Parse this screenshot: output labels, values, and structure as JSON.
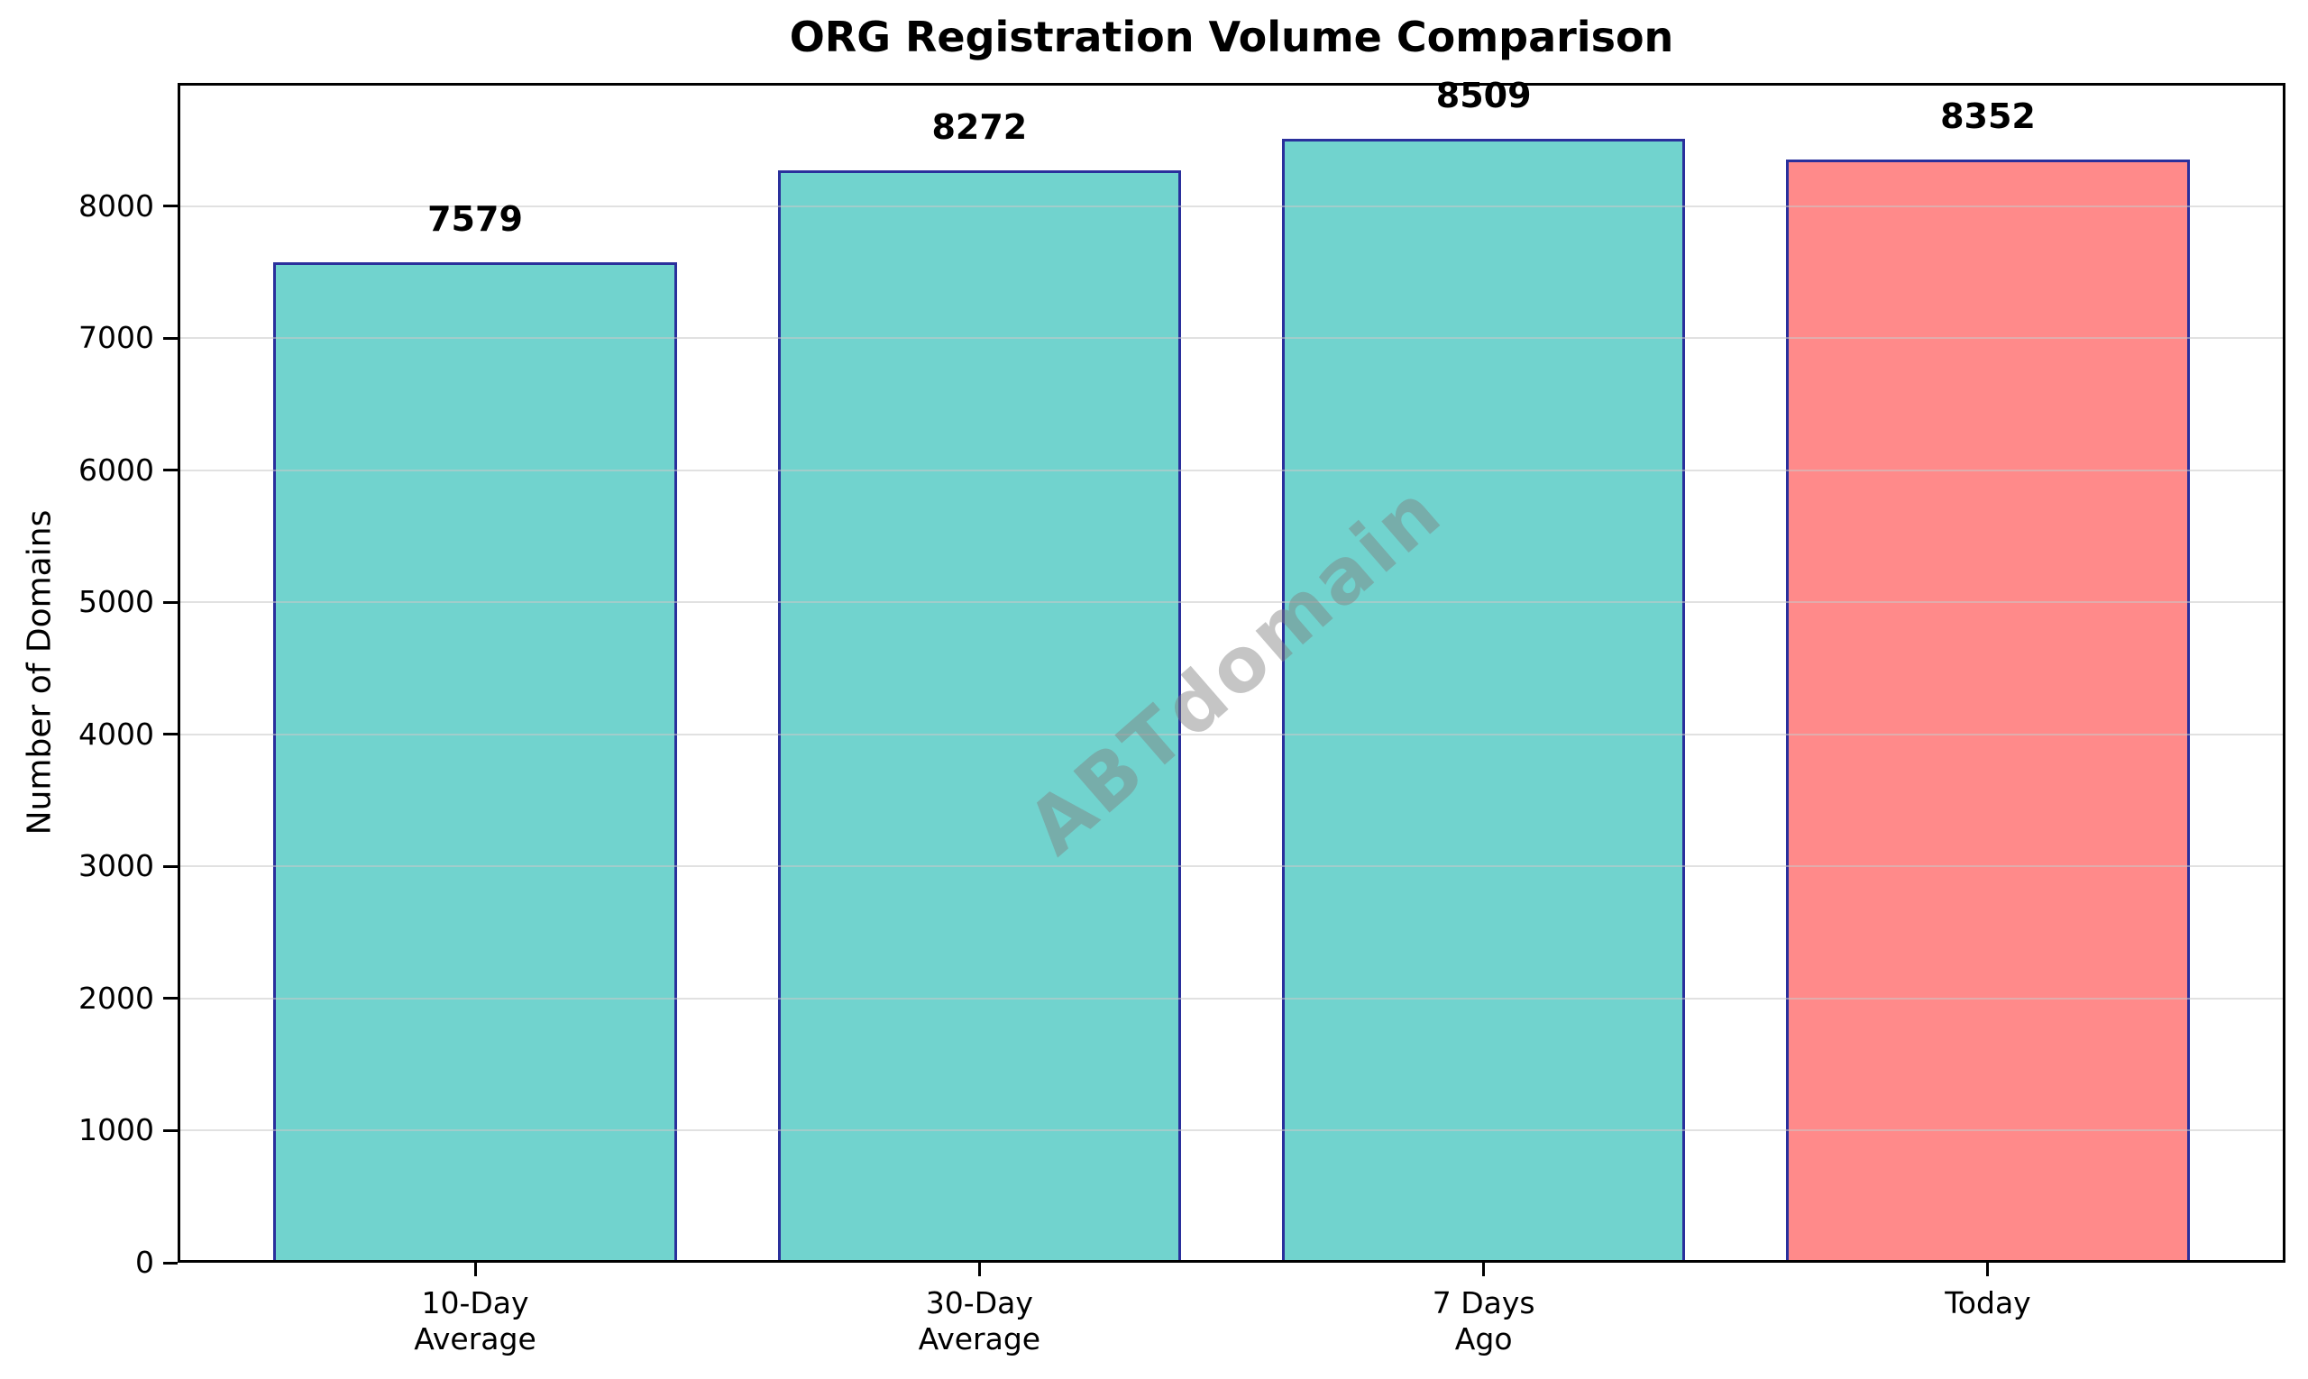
{
  "chart_data": {
    "type": "bar",
    "title": "ORG Registration Volume Comparison",
    "xlabel": "",
    "ylabel": "Number of Domains",
    "categories": [
      "10-Day Average",
      "30-Day Average",
      "7 Days Ago",
      "Today"
    ],
    "category_lines": [
      [
        "10-Day",
        "Average"
      ],
      [
        "30-Day",
        "Average"
      ],
      [
        "7 Days",
        "Ago"
      ],
      [
        "Today"
      ]
    ],
    "values": [
      7579,
      8272,
      8509,
      8352
    ],
    "value_labels": [
      "7579",
      "8272",
      "8509",
      "8352"
    ],
    "bar_colors": [
      "#71D3CE",
      "#71D3CE",
      "#71D3CE",
      "#FF8A8A"
    ],
    "bar_edge_color": "#2A309C",
    "yticks": [
      0,
      1000,
      2000,
      3000,
      4000,
      5000,
      6000,
      7000,
      8000
    ],
    "ylim": [
      0,
      8935
    ],
    "grid": "horizontal-over-bars",
    "gridline_color": "rgba(200,200,200,0.55)",
    "legend_position": "none",
    "watermark": "ABTdomain",
    "background_color": "#ffffff"
  }
}
